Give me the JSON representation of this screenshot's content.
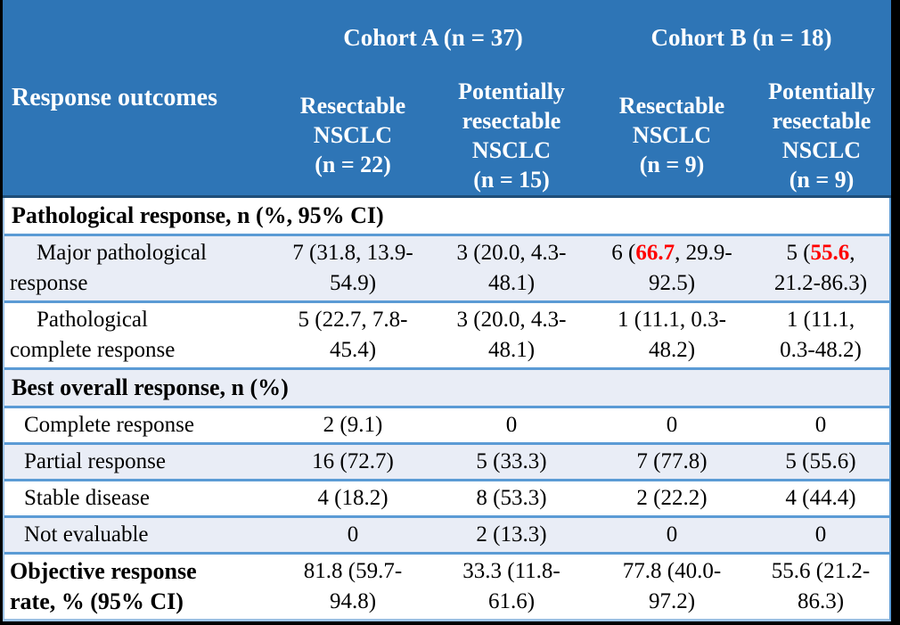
{
  "theme": {
    "page_bg": "#000000",
    "header_bg": "#2E75B6",
    "header_text": "#FFFFFF",
    "header_bottom_border": "#1F4E79",
    "row_shade_bg": "#E9EDF6",
    "row_border": "#5B9BD5",
    "highlight_red": "#FF0000"
  },
  "header": {
    "row_label": "Response outcomes",
    "cohort_a": "Cohort A (n = 37)",
    "cohort_b": "Cohort B (n = 18)",
    "subcolumns": [
      "Resectable\nNSCLC\n(n = 22)",
      "Potentially\nresectable\nNSCLC\n(n = 15)",
      "Resectable\nNSCLC\n(n = 9)",
      "Potentially\nresectable\nNSCLC\n(n = 9)"
    ]
  },
  "rows": [
    {
      "type": "section",
      "label": "Pathological response, n (%, 95% CI)"
    },
    {
      "type": "data",
      "label": "Major pathological\nresponse",
      "values": [
        "7 (31.8, 13.9-\n54.9)",
        "3 (20.0, 4.3-\n48.1)",
        {
          "prefix": "6 (",
          "red": "66.7",
          "suffix": ", 29.9-\n92.5)"
        },
        {
          "prefix": "5 (",
          "red": "55.6",
          "suffix": ",\n21.2-86.3)"
        }
      ]
    },
    {
      "type": "data",
      "label": "Pathological\ncomplete response",
      "values": [
        "5 (22.7, 7.8-\n45.4)",
        "3 (20.0, 4.3-\n48.1)",
        "1 (11.1, 0.3-\n48.2)",
        "1 (11.1,\n0.3-48.2)"
      ]
    },
    {
      "type": "section",
      "label": "Best overall response, n (%)"
    },
    {
      "type": "data",
      "label": "Complete response",
      "values": [
        "2 (9.1)",
        "0",
        "0",
        "0"
      ]
    },
    {
      "type": "data",
      "label": "Partial response",
      "values": [
        "16 (72.7)",
        "5 (33.3)",
        "7 (77.8)",
        "5 (55.6)"
      ]
    },
    {
      "type": "data",
      "label": "Stable disease",
      "values": [
        "4 (18.2)",
        "8 (53.3)",
        "2 (22.2)",
        "4 (44.4)"
      ]
    },
    {
      "type": "data",
      "label": "Not evaluable",
      "values": [
        "0",
        "2 (13.3)",
        "0",
        "0"
      ]
    },
    {
      "type": "data",
      "label": "Objective response\nrate, % (95% CI)",
      "values": [
        "81.8 (59.7-\n94.8)",
        "33.3 (11.8-\n61.6)",
        "77.8 (40.0-\n97.2)",
        "55.6 (21.2-\n86.3)"
      ]
    }
  ]
}
